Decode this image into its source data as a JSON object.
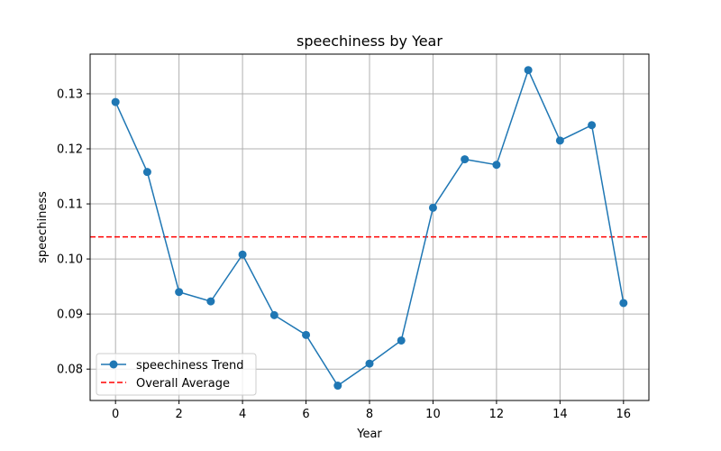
{
  "chart_data": {
    "type": "line",
    "title": "speechiness by Year",
    "xlabel": "Year",
    "ylabel": "speechiness",
    "x": [
      0,
      1,
      2,
      3,
      4,
      5,
      6,
      7,
      8,
      9,
      10,
      11,
      12,
      13,
      14,
      15,
      16
    ],
    "series": [
      {
        "name": "speechiness Trend",
        "color": "#1f77b4",
        "values": [
          0.1285,
          0.1158,
          0.094,
          0.0923,
          0.1008,
          0.0898,
          0.0862,
          0.077,
          0.081,
          0.0852,
          0.1093,
          0.1181,
          0.1171,
          0.1343,
          0.1215,
          0.1243,
          0.092
        ]
      }
    ],
    "reference_line": {
      "name": "Overall Average",
      "value": 0.104,
      "color": "#ff0000",
      "style": "dashed"
    },
    "xlim": [
      -0.8,
      16.8
    ],
    "ylim": [
      0.0743,
      0.1372
    ],
    "x_ticks": [
      0,
      2,
      4,
      6,
      8,
      10,
      12,
      14,
      16
    ],
    "y_ticks": [
      0.08,
      0.09,
      0.1,
      0.11,
      0.12,
      0.13
    ],
    "y_tick_labels": [
      "0.08",
      "0.09",
      "0.10",
      "0.11",
      "0.12",
      "0.13"
    ],
    "x_tick_labels": [
      "0",
      "2",
      "4",
      "6",
      "8",
      "10",
      "12",
      "14",
      "16"
    ],
    "grid": true,
    "legend_position": "lower-left"
  }
}
